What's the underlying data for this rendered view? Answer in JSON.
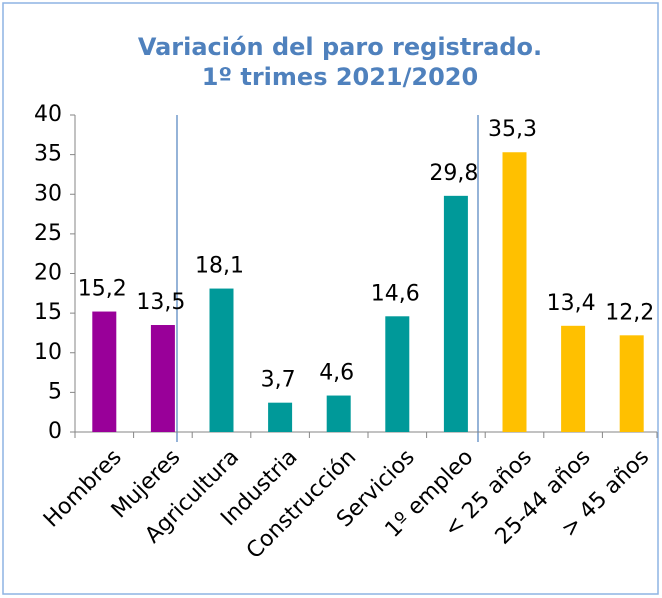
{
  "chart_data": {
    "type": "bar",
    "title": [
      "Variación del paro registrado.",
      "1º trimes 2021/2020"
    ],
    "categories": [
      "Hombres",
      "Mujeres",
      "Agricultura",
      "Industria",
      "Construcción",
      "Servicios",
      "1º empleo",
      "< 25 años",
      "25-44 años",
      "> 45 años"
    ],
    "values": [
      15.2,
      13.5,
      18.1,
      3.7,
      4.6,
      14.6,
      29.8,
      35.3,
      13.4,
      12.2
    ],
    "value_labels": [
      "15,2",
      "13,5",
      "18,1",
      "3,7",
      "4,6",
      "14,6",
      "29,8",
      "35,3",
      "13,4",
      "12,2"
    ],
    "colors": [
      "#990099",
      "#990099",
      "#009999",
      "#009999",
      "#009999",
      "#009999",
      "#009999",
      "#ffc000",
      "#ffc000",
      "#ffc000"
    ],
    "ylim": [
      0,
      40
    ],
    "yticks": [
      0,
      5,
      10,
      15,
      20,
      25,
      30,
      35,
      40
    ],
    "grid": false
  }
}
